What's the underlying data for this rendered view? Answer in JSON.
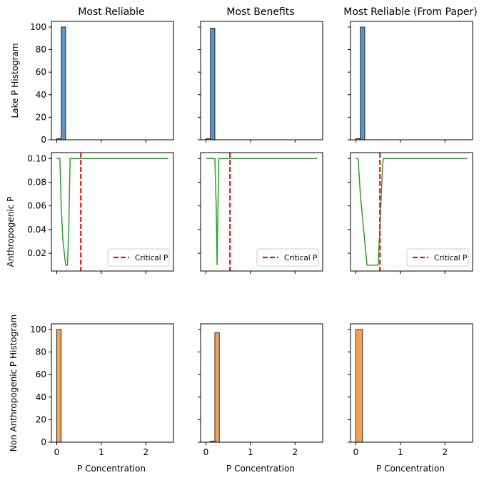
{
  "colors": {
    "hist_blue": "#5b97c6",
    "hist_orange": "#f5a05a",
    "line_green": "#2ca02c",
    "critical_red": "#e31a1c",
    "axis": "#000000"
  },
  "chart_data": {
    "type": "grid",
    "columns": [
      "Most Reliable",
      "Most Benefits",
      "Most Reliable (From Paper)"
    ],
    "row_ylabels": [
      "Lake P Histogram",
      "Anthropogenic P",
      "Non Anthropogenic P Histogram"
    ],
    "xlabel": "P Concentration",
    "xlim": [
      -0.12,
      2.62
    ],
    "xticks": [
      0,
      1,
      2
    ],
    "legend_label": "Critical P",
    "legend_loc": "lower right",
    "critical_p": 0.54,
    "row0": {
      "type": "bar",
      "ylim": [
        0,
        105
      ],
      "yticks": [
        0,
        20,
        40,
        60,
        80,
        100
      ],
      "bin_width": 0.1,
      "panels": [
        {
          "bins": [
            [
              0.0,
              1
            ],
            [
              0.1,
              100
            ]
          ]
        },
        {
          "bins": [
            [
              0.0,
              1
            ],
            [
              0.1,
              99
            ]
          ]
        },
        {
          "bins": [
            [
              0.0,
              1
            ],
            [
              0.1,
              100
            ]
          ]
        }
      ]
    },
    "row1": {
      "type": "line",
      "ylim": [
        0.005,
        0.105
      ],
      "yticks": [
        0.02,
        0.04,
        0.06,
        0.08,
        0.1
      ],
      "ytick_labels": [
        "0.02",
        "0.04",
        "0.06",
        "0.08",
        "0.10"
      ],
      "panels": [
        {
          "x": [
            0,
            0.07,
            0.1,
            0.14,
            0.2,
            0.24,
            0.27,
            0.3,
            1.0,
            2.5
          ],
          "y": [
            0.1,
            0.1,
            0.06,
            0.03,
            0.01,
            0.01,
            0.04,
            0.1,
            0.1,
            0.1
          ]
        },
        {
          "x": [
            0,
            0.2,
            0.23,
            0.25,
            0.27,
            0.29,
            1.0,
            2.5
          ],
          "y": [
            0.1,
            0.1,
            0.06,
            0.01,
            0.06,
            0.1,
            0.1,
            0.1
          ]
        },
        {
          "x": [
            0,
            0.05,
            0.1,
            0.2,
            0.25,
            0.5,
            0.55,
            0.6,
            0.62,
            1.0,
            2.5
          ],
          "y": [
            0.1,
            0.1,
            0.07,
            0.03,
            0.01,
            0.01,
            0.05,
            0.095,
            0.1,
            0.1,
            0.1
          ]
        }
      ]
    },
    "row2": {
      "type": "bar",
      "ylim": [
        0,
        105
      ],
      "yticks": [
        0,
        20,
        40,
        60,
        80,
        100
      ],
      "panels": [
        {
          "bin_width": 0.1,
          "bins": [
            [
              0.0,
              100
            ]
          ]
        },
        {
          "bin_width": 0.1,
          "bins": [
            [
              0.1,
              1
            ],
            [
              0.2,
              97
            ]
          ]
        },
        {
          "bin_width": 0.15,
          "bins": [
            [
              0.0,
              100
            ]
          ]
        }
      ]
    }
  }
}
